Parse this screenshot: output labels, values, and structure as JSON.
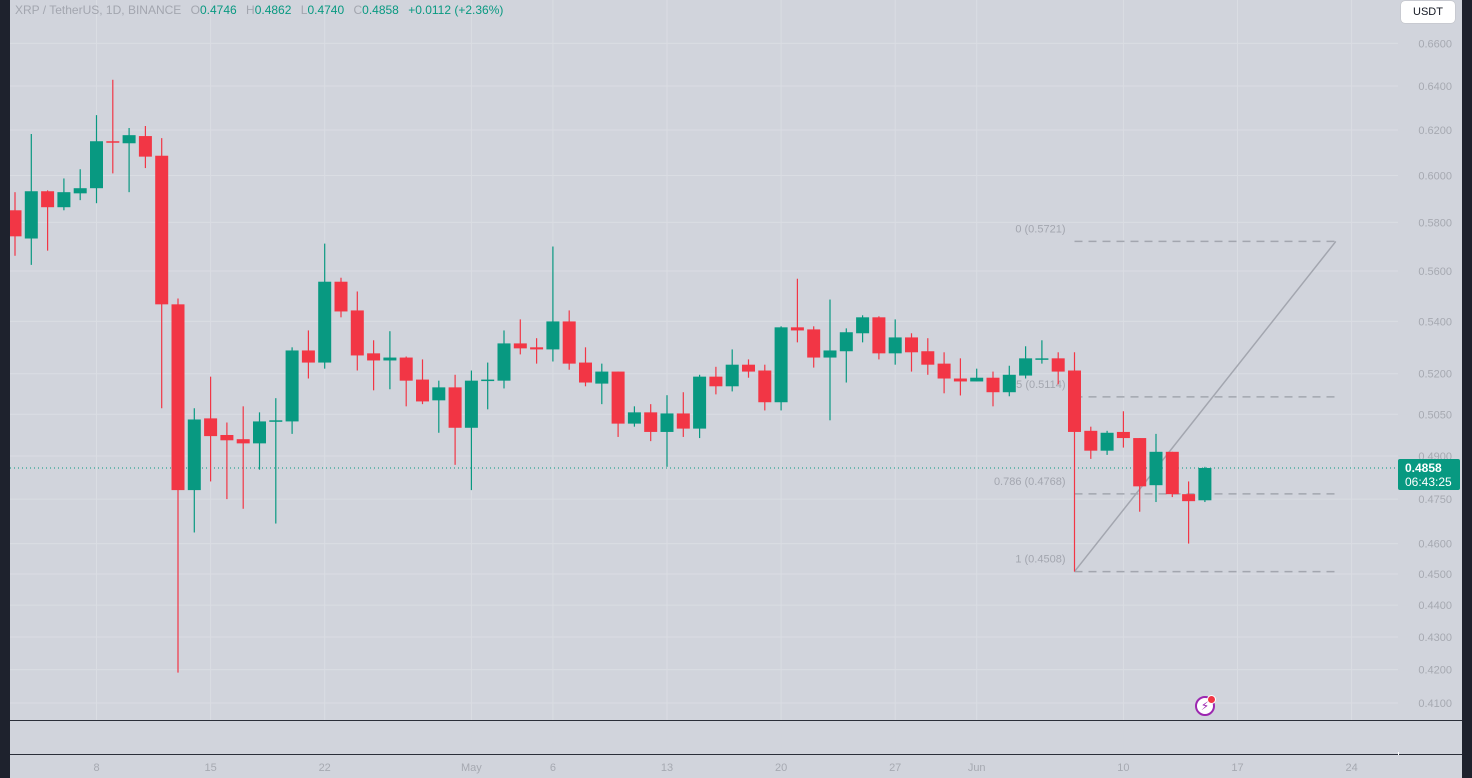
{
  "header": {
    "symbol_title": "XRP / TetherUS, 1D, BINANCE",
    "open_label": "O",
    "open": "0.4746",
    "high_label": "H",
    "high": "0.4862",
    "low_label": "L",
    "low": "0.4740",
    "close_label": "C",
    "close": "0.4858",
    "change": "+0.0112 (+2.36%)"
  },
  "currency_button": "USDT",
  "price_tag": {
    "price": "0.4858",
    "countdown": "06:43:25"
  },
  "colors": {
    "up": "#089981",
    "down": "#f23645",
    "background": "#d1d4dc",
    "fib": "#a3a6af",
    "alert_icon": "#9c27b0"
  },
  "icons": {
    "alert": "lightning-bolt-icon"
  },
  "chart_data": {
    "type": "candlestick",
    "scale": "log",
    "ylim": [
      0.405,
      0.681
    ],
    "grid": true,
    "y_ticks": [
      "0.6600",
      "0.6400",
      "0.6200",
      "0.6000",
      "0.5800",
      "0.5600",
      "0.5400",
      "0.5200",
      "0.5050",
      "0.4900",
      "0.4750",
      "0.4600",
      "0.4500",
      "0.4400",
      "0.4300",
      "0.4200",
      "0.4100"
    ],
    "x_ticks": [
      {
        "label": "8",
        "date": "Apr 8"
      },
      {
        "label": "15",
        "date": "Apr 15"
      },
      {
        "label": "22",
        "date": "Apr 22"
      },
      {
        "label": "May",
        "date": "May 1"
      },
      {
        "label": "6",
        "date": "May 6"
      },
      {
        "label": "13",
        "date": "May 13"
      },
      {
        "label": "20",
        "date": "May 20"
      },
      {
        "label": "27",
        "date": "May 27"
      },
      {
        "label": "Jun",
        "date": "Jun 1"
      },
      {
        "label": "10",
        "date": "Jun 10"
      },
      {
        "label": "17",
        "date": "Jun 17"
      },
      {
        "label": "24",
        "date": "Jun 24"
      }
    ],
    "current_price": 0.4858,
    "candles": [
      {
        "date": "Apr 3",
        "o": 0.5851,
        "h": 0.5928,
        "l": 0.5662,
        "c": 0.5742
      },
      {
        "date": "Apr 4",
        "o": 0.5733,
        "h": 0.6182,
        "l": 0.5625,
        "c": 0.5932
      },
      {
        "date": "Apr 5",
        "o": 0.5932,
        "h": 0.5936,
        "l": 0.5683,
        "c": 0.5864
      },
      {
        "date": "Apr 6",
        "o": 0.5864,
        "h": 0.5987,
        "l": 0.5851,
        "c": 0.5928
      },
      {
        "date": "Apr 7",
        "o": 0.5923,
        "h": 0.6027,
        "l": 0.5894,
        "c": 0.5945
      },
      {
        "date": "Apr 8",
        "o": 0.5945,
        "h": 0.6267,
        "l": 0.5881,
        "c": 0.615
      },
      {
        "date": "Apr 9",
        "o": 0.615,
        "h": 0.6429,
        "l": 0.6009,
        "c": 0.6145
      },
      {
        "date": "Apr 10",
        "o": 0.6141,
        "h": 0.6209,
        "l": 0.5928,
        "c": 0.6177
      },
      {
        "date": "Apr 11",
        "o": 0.6173,
        "h": 0.6218,
        "l": 0.6032,
        "c": 0.6082
      },
      {
        "date": "Apr 12",
        "o": 0.6086,
        "h": 0.6164,
        "l": 0.5072,
        "c": 0.5467
      },
      {
        "date": "Apr 13",
        "o": 0.5467,
        "h": 0.549,
        "l": 0.4191,
        "c": 0.4781
      },
      {
        "date": "Apr 14",
        "o": 0.4781,
        "h": 0.5072,
        "l": 0.4637,
        "c": 0.5031
      },
      {
        "date": "Apr 15",
        "o": 0.5035,
        "h": 0.5189,
        "l": 0.4811,
        "c": 0.4971
      },
      {
        "date": "Apr 16",
        "o": 0.4975,
        "h": 0.502,
        "l": 0.475,
        "c": 0.4956
      },
      {
        "date": "Apr 17",
        "o": 0.496,
        "h": 0.5079,
        "l": 0.4717,
        "c": 0.4945
      },
      {
        "date": "Apr 18",
        "o": 0.4945,
        "h": 0.5057,
        "l": 0.4852,
        "c": 0.5024
      },
      {
        "date": "Apr 19",
        "o": 0.5024,
        "h": 0.5109,
        "l": 0.4667,
        "c": 0.5028
      },
      {
        "date": "Apr 20",
        "o": 0.5024,
        "h": 0.53,
        "l": 0.4979,
        "c": 0.5288
      },
      {
        "date": "Apr 21",
        "o": 0.5288,
        "h": 0.5365,
        "l": 0.5182,
        "c": 0.5242
      },
      {
        "date": "Apr 22",
        "o": 0.5242,
        "h": 0.5712,
        "l": 0.5219,
        "c": 0.5557
      },
      {
        "date": "Apr 23",
        "o": 0.5557,
        "h": 0.5573,
        "l": 0.5416,
        "c": 0.5439
      },
      {
        "date": "Apr 24",
        "o": 0.5443,
        "h": 0.5518,
        "l": 0.5212,
        "c": 0.5269
      },
      {
        "date": "Apr 25",
        "o": 0.5277,
        "h": 0.5327,
        "l": 0.5138,
        "c": 0.525
      },
      {
        "date": "Apr 26",
        "o": 0.525,
        "h": 0.5362,
        "l": 0.5142,
        "c": 0.5261
      },
      {
        "date": "Apr 27",
        "o": 0.5261,
        "h": 0.5265,
        "l": 0.5079,
        "c": 0.5174
      },
      {
        "date": "Apr 28",
        "o": 0.5178,
        "h": 0.5254,
        "l": 0.5087,
        "c": 0.5097
      },
      {
        "date": "Apr 29",
        "o": 0.5101,
        "h": 0.5174,
        "l": 0.4983,
        "c": 0.5149
      },
      {
        "date": "Apr 30",
        "o": 0.5149,
        "h": 0.5196,
        "l": 0.4869,
        "c": 0.5001
      },
      {
        "date": "May 1",
        "o": 0.5001,
        "h": 0.5212,
        "l": 0.4781,
        "c": 0.5174
      },
      {
        "date": "May 2",
        "o": 0.5174,
        "h": 0.5242,
        "l": 0.5068,
        "c": 0.5178
      },
      {
        "date": "May 3",
        "o": 0.5174,
        "h": 0.5365,
        "l": 0.5145,
        "c": 0.5315
      },
      {
        "date": "May 4",
        "o": 0.5315,
        "h": 0.5408,
        "l": 0.5273,
        "c": 0.5296
      },
      {
        "date": "May 5",
        "o": 0.53,
        "h": 0.5335,
        "l": 0.5238,
        "c": 0.5292
      },
      {
        "date": "May 6",
        "o": 0.5292,
        "h": 0.57,
        "l": 0.5246,
        "c": 0.54
      },
      {
        "date": "May 7",
        "o": 0.54,
        "h": 0.5443,
        "l": 0.5215,
        "c": 0.5238
      },
      {
        "date": "May 8",
        "o": 0.5242,
        "h": 0.53,
        "l": 0.5153,
        "c": 0.5167
      },
      {
        "date": "May 9",
        "o": 0.5163,
        "h": 0.5238,
        "l": 0.5087,
        "c": 0.5208
      },
      {
        "date": "May 10",
        "o": 0.5208,
        "h": 0.5208,
        "l": 0.4968,
        "c": 0.5016
      },
      {
        "date": "May 11",
        "o": 0.5016,
        "h": 0.5079,
        "l": 0.5005,
        "c": 0.5057
      },
      {
        "date": "May 12",
        "o": 0.5057,
        "h": 0.5087,
        "l": 0.4953,
        "c": 0.4986
      },
      {
        "date": "May 13",
        "o": 0.4986,
        "h": 0.512,
        "l": 0.4862,
        "c": 0.5053
      },
      {
        "date": "May 14",
        "o": 0.5053,
        "h": 0.5131,
        "l": 0.4968,
        "c": 0.4998
      },
      {
        "date": "May 15",
        "o": 0.4998,
        "h": 0.5196,
        "l": 0.4964,
        "c": 0.5189
      },
      {
        "date": "May 16",
        "o": 0.5189,
        "h": 0.5226,
        "l": 0.5123,
        "c": 0.5153
      },
      {
        "date": "May 17",
        "o": 0.5153,
        "h": 0.5292,
        "l": 0.5134,
        "c": 0.5234
      },
      {
        "date": "May 18",
        "o": 0.5234,
        "h": 0.5254,
        "l": 0.5185,
        "c": 0.5208
      },
      {
        "date": "May 19",
        "o": 0.5212,
        "h": 0.5234,
        "l": 0.5064,
        "c": 0.5094
      },
      {
        "date": "May 20",
        "o": 0.5094,
        "h": 0.5381,
        "l": 0.5064,
        "c": 0.5377
      },
      {
        "date": "May 21",
        "o": 0.5377,
        "h": 0.5569,
        "l": 0.5319,
        "c": 0.5365
      },
      {
        "date": "May 22",
        "o": 0.5369,
        "h": 0.5381,
        "l": 0.5223,
        "c": 0.5261
      },
      {
        "date": "May 23",
        "o": 0.5261,
        "h": 0.5486,
        "l": 0.5028,
        "c": 0.5288
      },
      {
        "date": "May 24",
        "o": 0.5285,
        "h": 0.5373,
        "l": 0.5167,
        "c": 0.5358
      },
      {
        "date": "May 25",
        "o": 0.5354,
        "h": 0.5424,
        "l": 0.5319,
        "c": 0.5416
      },
      {
        "date": "May 26",
        "o": 0.5416,
        "h": 0.542,
        "l": 0.5254,
        "c": 0.5277
      },
      {
        "date": "May 27",
        "o": 0.5277,
        "h": 0.5408,
        "l": 0.5234,
        "c": 0.5338
      },
      {
        "date": "May 28",
        "o": 0.5338,
        "h": 0.5354,
        "l": 0.5208,
        "c": 0.5281
      },
      {
        "date": "May 29",
        "o": 0.5285,
        "h": 0.5335,
        "l": 0.5196,
        "c": 0.5234
      },
      {
        "date": "May 30",
        "o": 0.5238,
        "h": 0.5281,
        "l": 0.5127,
        "c": 0.5182
      },
      {
        "date": "May 31",
        "o": 0.5182,
        "h": 0.5258,
        "l": 0.5119,
        "c": 0.5171
      },
      {
        "date": "Jun 1",
        "o": 0.5171,
        "h": 0.5219,
        "l": 0.5171,
        "c": 0.5185
      },
      {
        "date": "Jun 2",
        "o": 0.5185,
        "h": 0.5208,
        "l": 0.5079,
        "c": 0.5131
      },
      {
        "date": "Jun 3",
        "o": 0.5131,
        "h": 0.523,
        "l": 0.5116,
        "c": 0.5196
      },
      {
        "date": "Jun 4",
        "o": 0.5193,
        "h": 0.5304,
        "l": 0.5182,
        "c": 0.5258
      },
      {
        "date": "Jun 5",
        "o": 0.5254,
        "h": 0.5327,
        "l": 0.5238,
        "c": 0.5258
      },
      {
        "date": "Jun 6",
        "o": 0.5258,
        "h": 0.5281,
        "l": 0.516,
        "c": 0.5208
      },
      {
        "date": "Jun 7",
        "o": 0.5212,
        "h": 0.5281,
        "l": 0.4508,
        "c": 0.4986
      },
      {
        "date": "Jun 8",
        "o": 0.499,
        "h": 0.5005,
        "l": 0.489,
        "c": 0.4919
      },
      {
        "date": "Jun 9",
        "o": 0.4919,
        "h": 0.499,
        "l": 0.4904,
        "c": 0.4983
      },
      {
        "date": "Jun 10",
        "o": 0.4986,
        "h": 0.5061,
        "l": 0.493,
        "c": 0.4964
      },
      {
        "date": "Jun 11",
        "o": 0.4964,
        "h": 0.4964,
        "l": 0.4707,
        "c": 0.4794
      },
      {
        "date": "Jun 12",
        "o": 0.4798,
        "h": 0.4979,
        "l": 0.474,
        "c": 0.4915
      },
      {
        "date": "Jun 13",
        "o": 0.4915,
        "h": 0.4915,
        "l": 0.4757,
        "c": 0.4767
      },
      {
        "date": "Jun 14",
        "o": 0.4767,
        "h": 0.4811,
        "l": 0.46,
        "c": 0.4743
      },
      {
        "date": "Jun 15",
        "o": 0.4746,
        "h": 0.4862,
        "l": 0.474,
        "c": 0.4858
      }
    ],
    "fib_retracement": {
      "from": {
        "date": "Jun 7",
        "price": 0.4508
      },
      "to": {
        "date": "Jun 23",
        "price": 0.5721
      },
      "levels": [
        {
          "label": "0 (0.5721)",
          "price": 0.5721
        },
        {
          "label": "0.5 (0.5114)",
          "price": 0.5114
        },
        {
          "label": "0.786 (0.4768)",
          "price": 0.4768
        },
        {
          "label": "1 (0.4508)",
          "price": 0.4508
        }
      ]
    }
  }
}
